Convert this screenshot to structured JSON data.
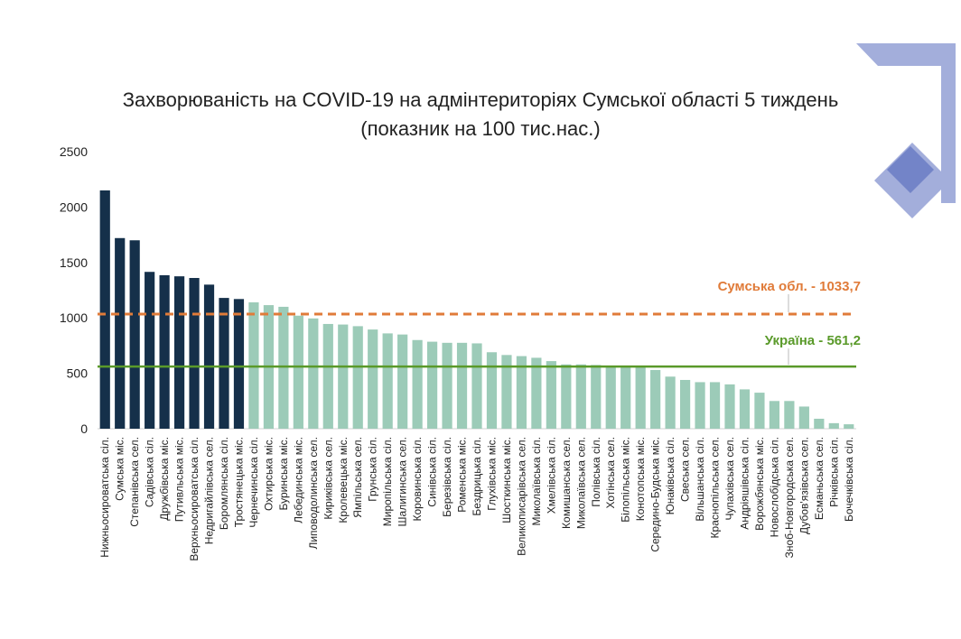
{
  "chart_data": {
    "type": "bar",
    "title_line1": "Захворюваність на COVID-19 на адмінтериторіях Сумської області 5 тиждень",
    "title_line2": "(показник на 100 тис.нас.)",
    "ylim": [
      0,
      2500
    ],
    "yticks": [
      0,
      500,
      1000,
      1500,
      2000,
      2500
    ],
    "grid": false,
    "colors": {
      "top_group": "#15304a",
      "other": "#9ccbb8",
      "region_line": "#e07b39",
      "ukraine_line": "#5a9a2a"
    },
    "highlight_count": 10,
    "categories": [
      "Нижньосироватська сіл.",
      "Сумська міс.",
      "Степанівська сел.",
      "Садівська сіл.",
      "Дружбівська міс.",
      "Путивльська міс.",
      "Верхньосироватська сіл.",
      "Недригайлівська сел.",
      "Боромлянська сіл.",
      "Тростянецька міс.",
      "Чернечинська сіл.",
      "Охтирська міс.",
      "Буринська міс.",
      "Лебединська міс.",
      "Липоводолинська сел.",
      "Кириківська сел.",
      "Кролевецька міс.",
      "Ямпільська сел.",
      "Грунська сіл.",
      "Миропільська сіл.",
      "Шалигинська сел.",
      "Коровинська сіл.",
      "Синівська сіл.",
      "Березівська сіл.",
      "Роменська міс.",
      "Бездрицька сіл.",
      "Глухівська міс.",
      "Шосткинська міс.",
      "Великописарівська сел.",
      "Миколаївська сіл.",
      "Хмелівська сіл.",
      "Комишанська сел.",
      "Миколаївська сел.",
      "Полівська сіл.",
      "Хотінська сел.",
      "Білопільська міс.",
      "Конотопська міс.",
      "Середино-Будська міс.",
      "Юнаківська сіл.",
      "Свеська сел.",
      "Вільшанська сіл.",
      "Краснопільська сел.",
      "Чупахівська сел.",
      "Андріяшівська сіл.",
      "Ворожбянська міс.",
      "Новослобідська сіл.",
      "Зноб-Новгородська сел.",
      "Дубов'язівська сел.",
      "Есманьська сел.",
      "Річківська сіл.",
      "Бочечківська сіл."
    ],
    "values": [
      2150,
      1720,
      1700,
      1415,
      1385,
      1375,
      1360,
      1300,
      1180,
      1170,
      1140,
      1115,
      1100,
      1020,
      995,
      945,
      940,
      925,
      895,
      860,
      850,
      800,
      785,
      775,
      775,
      770,
      690,
      665,
      655,
      640,
      610,
      580,
      580,
      575,
      570,
      570,
      560,
      530,
      470,
      440,
      420,
      420,
      400,
      355,
      325,
      250,
      250,
      200,
      90,
      50,
      40
    ],
    "reference_lines": [
      {
        "label": "Сумська обл. - 1033,7",
        "value": 1033.7,
        "style": "dashed",
        "color": "#e07b39"
      },
      {
        "label": "Україна - 561,2",
        "value": 561.2,
        "style": "solid",
        "color": "#5a9a2a"
      }
    ]
  }
}
